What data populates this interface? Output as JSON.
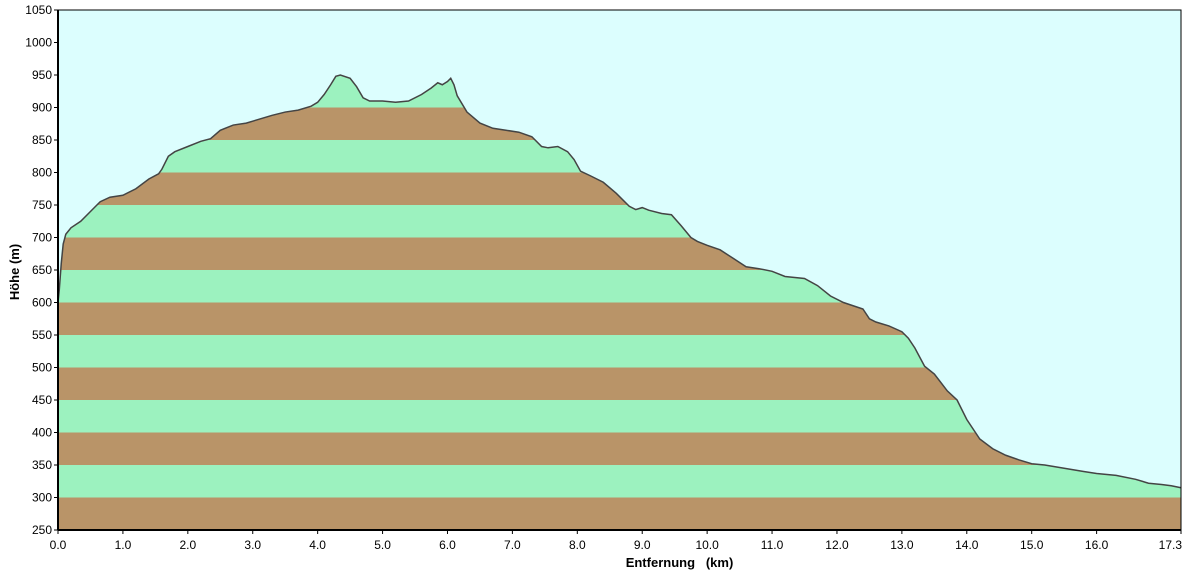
{
  "chart_data": {
    "type": "area",
    "title": "",
    "xlabel": "Entfernung   (km)",
    "ylabel": "Höhe (m)",
    "xlim": [
      0,
      17.3
    ],
    "ylim": [
      250,
      1050
    ],
    "x_ticks": [
      0.0,
      1.0,
      2.0,
      3.0,
      4.0,
      5.0,
      6.0,
      7.0,
      8.0,
      9.0,
      10.0,
      11.0,
      12.0,
      13.0,
      14.0,
      15.0,
      16.0,
      17.3
    ],
    "x_tick_labels": [
      "0.0",
      "1.0",
      "2.0",
      "3.0",
      "4.0",
      "5.0",
      "6.0",
      "7.0",
      "8.0",
      "9.0",
      "10.0",
      "11.0",
      "12.0",
      "13.0",
      "14.0",
      "15.0",
      "16.0",
      "17.3"
    ],
    "y_ticks": [
      250,
      300,
      350,
      400,
      450,
      500,
      550,
      600,
      650,
      700,
      750,
      800,
      850,
      900,
      950,
      1000,
      1050
    ],
    "y_tick_labels": [
      "250",
      "300",
      "350",
      "400",
      "450",
      "500",
      "550",
      "600",
      "650",
      "700",
      "750",
      "800",
      "850",
      "900",
      "950",
      "1000",
      "1050"
    ],
    "band_step": 50,
    "band_base": 250,
    "grid": false,
    "legend": "none",
    "colors": {
      "sky": "#dcfefe",
      "band_brown": "#b99468",
      "band_green": "#9cf2bf",
      "outline": "#444444",
      "axis": "#000000"
    },
    "series": [
      {
        "x": [
          0.0,
          0.02,
          0.05,
          0.08,
          0.12,
          0.2,
          0.35,
          0.5,
          0.65,
          0.8,
          1.0,
          1.2,
          1.4,
          1.55,
          1.6,
          1.7,
          1.8,
          2.0,
          2.2,
          2.35,
          2.5,
          2.7,
          2.9,
          3.1,
          3.3,
          3.5,
          3.7,
          3.9,
          4.0,
          4.1,
          4.2,
          4.28,
          4.35,
          4.5,
          4.6,
          4.7,
          4.8,
          5.0,
          5.2,
          5.4,
          5.6,
          5.75,
          5.85,
          5.92,
          6.0,
          6.05,
          6.1,
          6.15,
          6.3,
          6.5,
          6.7,
          6.9,
          7.1,
          7.3,
          7.45,
          7.55,
          7.7,
          7.85,
          7.95,
          8.05,
          8.2,
          8.4,
          8.6,
          8.8,
          8.9,
          9.0,
          9.1,
          9.3,
          9.45,
          9.6,
          9.75,
          9.85,
          10.0,
          10.2,
          10.4,
          10.6,
          10.8,
          11.0,
          11.2,
          11.5,
          11.7,
          11.9,
          12.1,
          12.4,
          12.5,
          12.6,
          12.8,
          13.0,
          13.1,
          13.2,
          13.35,
          13.5,
          13.7,
          13.85,
          14.0,
          14.2,
          14.4,
          14.6,
          14.8,
          15.0,
          15.2,
          15.5,
          15.8,
          16.0,
          16.3,
          16.6,
          16.8,
          17.0,
          17.15,
          17.3
        ],
        "y": [
          600,
          620,
          660,
          690,
          705,
          715,
          725,
          740,
          755,
          762,
          765,
          775,
          790,
          798,
          805,
          825,
          832,
          840,
          848,
          852,
          865,
          873,
          876,
          882,
          888,
          893,
          896,
          902,
          908,
          920,
          935,
          948,
          950,
          945,
          932,
          915,
          910,
          910,
          908,
          910,
          920,
          930,
          938,
          935,
          940,
          945,
          935,
          918,
          893,
          876,
          868,
          865,
          862,
          855,
          840,
          838,
          840,
          832,
          820,
          802,
          795,
          785,
          768,
          748,
          743,
          746,
          742,
          737,
          735,
          718,
          700,
          694,
          688,
          681,
          668,
          655,
          652,
          648,
          640,
          637,
          626,
          610,
          600,
          590,
          575,
          570,
          564,
          555,
          545,
          530,
          502,
          490,
          464,
          450,
          420,
          390,
          375,
          365,
          358,
          352,
          350,
          345,
          340,
          337,
          334,
          328,
          322,
          320,
          318,
          315
        ]
      }
    ]
  }
}
